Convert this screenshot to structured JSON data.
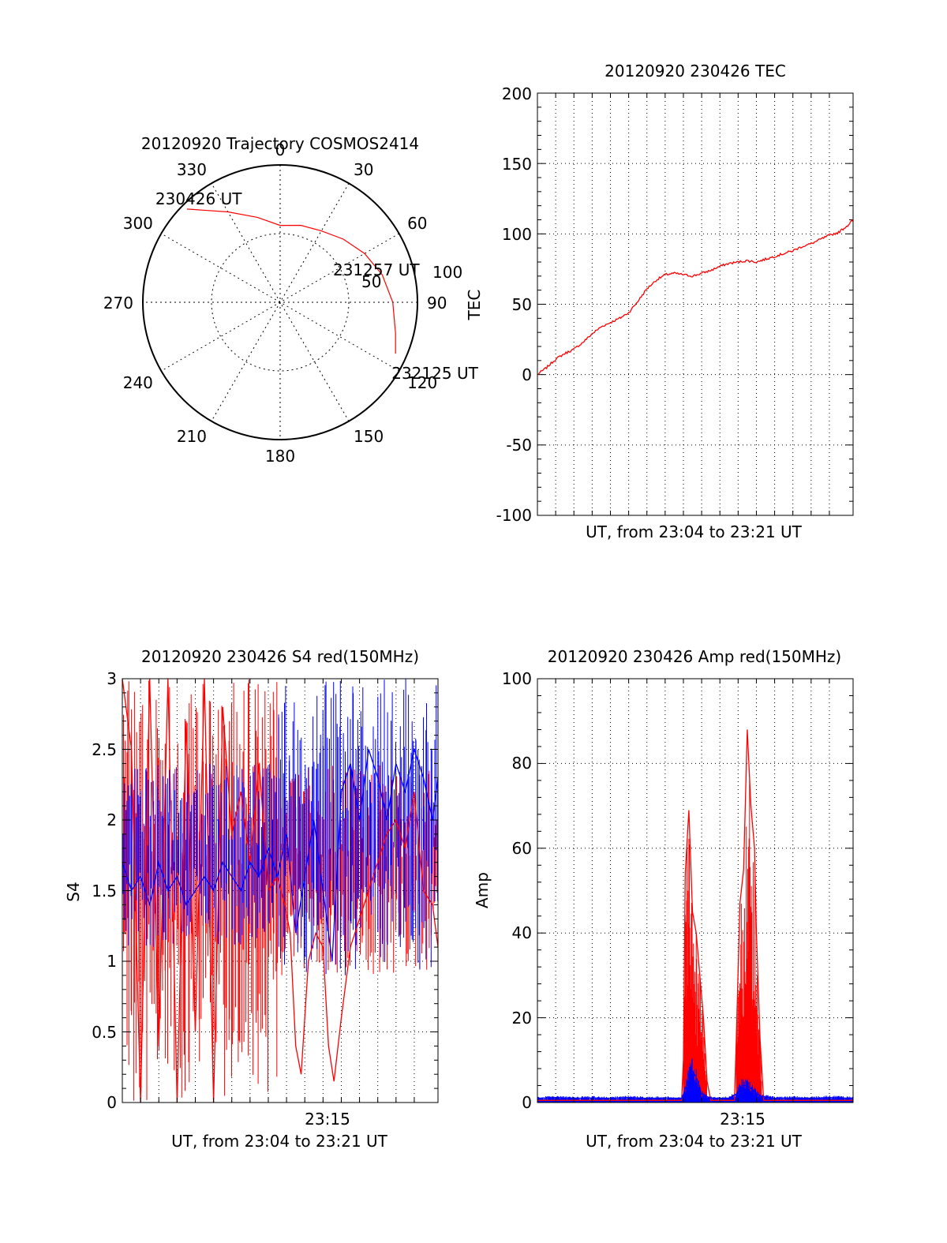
{
  "colors": {
    "red": "#ff0000",
    "blue": "#0000ff",
    "axis": "#000000"
  },
  "chart_data": [
    {
      "type": "polar",
      "title": "20120920 Trajectory COSMOS2414",
      "azimuth_labels": [
        "0",
        "30",
        "60",
        "90",
        "120",
        "150",
        "180",
        "210",
        "240",
        "270",
        "300",
        "330"
      ],
      "radial_labels": [
        "50",
        "100"
      ],
      "radial_max": 100,
      "trajectory": {
        "color": "red",
        "points": [
          {
            "az": 315,
            "r": 96
          },
          {
            "az": 330,
            "r": 76
          },
          {
            "az": 345,
            "r": 64
          },
          {
            "az": 0,
            "r": 56
          },
          {
            "az": 15,
            "r": 58
          },
          {
            "az": 30,
            "r": 60
          },
          {
            "az": 45,
            "r": 65
          },
          {
            "az": 60,
            "r": 71
          },
          {
            "az": 75,
            "r": 77
          },
          {
            "az": 90,
            "r": 82
          },
          {
            "az": 105,
            "r": 87
          },
          {
            "az": 114,
            "r": 92
          }
        ]
      },
      "annotations": [
        {
          "text": "230426 UT",
          "az": 315,
          "r": 96
        },
        {
          "text": "231257 UT",
          "az": 60,
          "r": 71
        },
        {
          "text": "232125 UT",
          "az": 114,
          "r": 92
        }
      ]
    },
    {
      "type": "line",
      "title": "20120920 230426 TEC",
      "xlabel": "UT, from 23:04 to 23:21 UT",
      "ylabel": "TEC",
      "ylim": [
        -100,
        200
      ],
      "yticks": [
        "-100",
        "-50",
        "0",
        "50",
        "100",
        "150",
        "200"
      ],
      "xlim": [
        0,
        17.3
      ],
      "grid": true,
      "series": [
        {
          "color": "red",
          "x": [
            0.0,
            0.5,
            1.0,
            1.5,
            2.0,
            2.5,
            3.0,
            3.5,
            4.0,
            4.5,
            5.0,
            5.5,
            6.0,
            6.5,
            7.0,
            7.5,
            8.0,
            8.5,
            9.0,
            9.5,
            10.0,
            10.5,
            11.0,
            11.5,
            12.0,
            12.5,
            13.0,
            13.5,
            14.0,
            14.5,
            15.0,
            15.5,
            16.0,
            16.5,
            17.0,
            17.3
          ],
          "y": [
            0,
            5,
            11,
            15,
            18,
            23,
            29,
            34,
            37,
            40,
            44,
            52,
            61,
            67,
            71,
            72,
            71,
            70,
            72,
            74,
            77,
            79,
            80,
            81,
            80,
            82,
            84,
            86,
            88,
            91,
            93,
            96,
            99,
            101,
            106,
            110
          ]
        }
      ]
    },
    {
      "type": "line",
      "title": "20120920 230426 S4 red(150MHz)",
      "xlabel": "UT, from 23:04 to 23:21 UT",
      "ylabel": "S4",
      "ylim": [
        0,
        3
      ],
      "yticks": [
        "0",
        "0.5",
        "1",
        "1.5",
        "2",
        "2.5",
        "3"
      ],
      "xlim": [
        0,
        17.3
      ],
      "xticks": [
        {
          "x": 11,
          "label": "23:15"
        }
      ],
      "grid": true,
      "series": [
        {
          "color": "red",
          "x": [
            0.0,
            0.5,
            1.0,
            1.5,
            2.0,
            2.5,
            3.0,
            3.5,
            4.0,
            4.5,
            5.0,
            5.5,
            6.0,
            6.5,
            7.0,
            7.5,
            8.0,
            8.5,
            8.9,
            9.2,
            9.5,
            9.8,
            10.2,
            10.6,
            11.0,
            11.3,
            11.6,
            12.0,
            12.5,
            13.0,
            13.5,
            14.0,
            14.5,
            15.0,
            15.5,
            16.0,
            16.5,
            17.0,
            17.3
          ],
          "y": [
            3,
            2.5,
            0,
            3,
            0.4,
            3,
            0,
            2.7,
            0.5,
            3,
            0,
            2.8,
            1.9,
            2.2,
            1.7,
            2.4,
            1.5,
            1.6,
            1.4,
            1.2,
            0.4,
            0.2,
            1.0,
            1.2,
            1.1,
            0.4,
            0.15,
            0.6,
            1.1,
            1.3,
            1.5,
            1.7,
            1.9,
            2.0,
            1.8,
            2.2,
            1.5,
            1.4,
            1.1
          ],
          "range_bands": [
            {
              "x": [
                0,
                8.5
              ],
              "min": 0,
              "max": 3
            },
            {
              "x": [
                8.5,
                17.3
              ],
              "min": 0.9,
              "max": 2.4
            }
          ]
        },
        {
          "color": "blue",
          "x": [
            0.0,
            0.5,
            1.0,
            1.5,
            2.0,
            2.5,
            3.0,
            3.5,
            4.0,
            4.5,
            5.0,
            5.5,
            6.0,
            6.5,
            7.0,
            7.5,
            8.0,
            8.5,
            9.0,
            9.5,
            10.0,
            10.5,
            11.0,
            11.5,
            12.0,
            12.5,
            13.0,
            13.5,
            14.0,
            14.5,
            15.0,
            15.5,
            16.0,
            16.5,
            17.0,
            17.3
          ],
          "y": [
            1.7,
            1.5,
            1.6,
            1.4,
            1.7,
            1.5,
            1.6,
            1.4,
            1.5,
            1.6,
            1.5,
            1.7,
            1.6,
            1.5,
            1.7,
            1.6,
            1.8,
            1.6,
            1.9,
            1.2,
            1.6,
            2.0,
            1.5,
            1.0,
            2.2,
            2.4,
            2.0,
            2.5,
            2.3,
            2.0,
            2.4,
            2.2,
            2.5,
            2.3,
            2.0,
            2.3
          ],
          "range_bands": [
            {
              "x": [
                0,
                8.5
              ],
              "min": 1.1,
              "max": 2.4
            },
            {
              "x": [
                8.5,
                17.3
              ],
              "min": 0.9,
              "max": 3
            }
          ]
        }
      ]
    },
    {
      "type": "line",
      "title": "20120920 230426 Amp red(150MHz)",
      "xlabel": "UT, from 23:04 to 23:21 UT",
      "ylabel": "Amp",
      "ylim": [
        0,
        100
      ],
      "yticks": [
        "0",
        "20",
        "40",
        "60",
        "80",
        "100"
      ],
      "xlim": [
        0,
        17.3
      ],
      "xticks": [
        {
          "x": 11,
          "label": "23:15"
        }
      ],
      "grid": true,
      "series": [
        {
          "color": "red",
          "x": [
            0.0,
            7.9,
            8.0,
            8.1,
            8.3,
            8.5,
            8.7,
            8.9,
            9.1,
            9.3,
            9.5,
            10.8,
            10.9,
            11.1,
            11.3,
            11.5,
            11.7,
            11.9,
            12.0,
            12.2,
            12.4,
            17.3
          ],
          "y": [
            0.5,
            0.5,
            10,
            54,
            69,
            45,
            40,
            30,
            20,
            5,
            0.5,
            0.5,
            15,
            47,
            55,
            88,
            70,
            60,
            40,
            15,
            0.5,
            0.5
          ]
        },
        {
          "color": "blue",
          "x": [
            0.0,
            1.0,
            2.0,
            3.0,
            4.0,
            5.0,
            6.0,
            7.0,
            7.9,
            8.1,
            8.4,
            8.7,
            9.0,
            9.5,
            10.5,
            10.9,
            11.2,
            11.5,
            11.8,
            12.2,
            13.0,
            14.0,
            15.0,
            16.0,
            17.3
          ],
          "y": [
            1,
            1.2,
            1,
            1.1,
            1,
            1.2,
            1,
            1.1,
            1,
            3,
            8,
            6,
            2,
            1,
            1,
            2,
            4,
            4,
            3,
            1.5,
            1,
            1.1,
            1,
            1.2,
            1
          ]
        }
      ]
    }
  ]
}
